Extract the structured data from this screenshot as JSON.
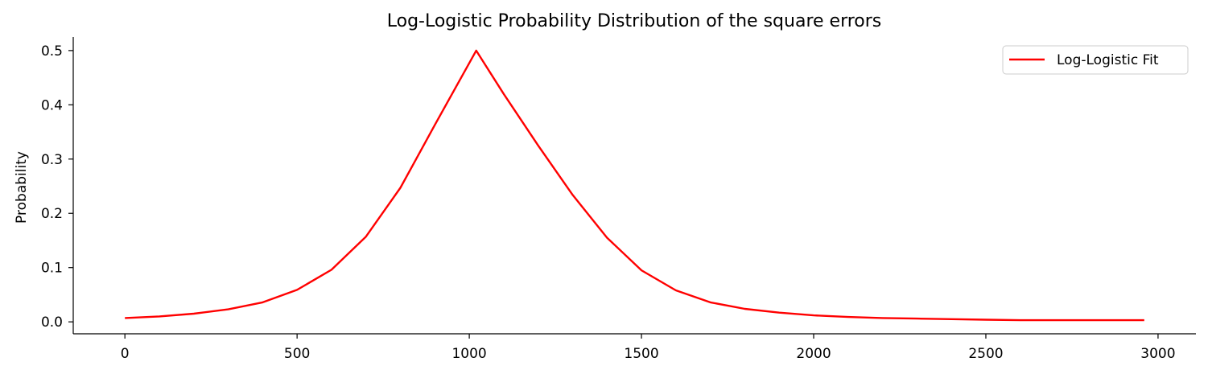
{
  "chart_data": {
    "type": "line",
    "title": "Log-Logistic Probability Distribution of the square errors",
    "xlabel": "",
    "ylabel": "Probability",
    "xlim": [
      -150,
      3110
    ],
    "ylim": [
      -0.022,
      0.525
    ],
    "xticks": [
      0,
      500,
      1000,
      1500,
      2000,
      2500,
      3000
    ],
    "yticks": [
      0.0,
      0.1,
      0.2,
      0.3,
      0.4,
      0.5
    ],
    "xtick_labels": [
      "0",
      "500",
      "1000",
      "1500",
      "2000",
      "2500",
      "3000"
    ],
    "ytick_labels": [
      "0.0",
      "0.1",
      "0.2",
      "0.3",
      "0.4",
      "0.5"
    ],
    "grid": false,
    "legend_position": "top-right",
    "series": [
      {
        "name": "Log-Logistic Fit",
        "color": "#ff0000",
        "x": [
          0,
          100,
          200,
          300,
          400,
          500,
          600,
          700,
          800,
          900,
          1020,
          1100,
          1200,
          1300,
          1400,
          1500,
          1600,
          1700,
          1800,
          1900,
          2000,
          2100,
          2200,
          2300,
          2400,
          2500,
          2600,
          2700,
          2800,
          2960
        ],
        "y": [
          0.007,
          0.01,
          0.015,
          0.023,
          0.036,
          0.059,
          0.096,
          0.157,
          0.247,
          0.363,
          0.5,
          0.42,
          0.325,
          0.234,
          0.155,
          0.095,
          0.058,
          0.036,
          0.024,
          0.017,
          0.012,
          0.009,
          0.007,
          0.006,
          0.005,
          0.004,
          0.003,
          0.003,
          0.003,
          0.003
        ]
      }
    ]
  }
}
